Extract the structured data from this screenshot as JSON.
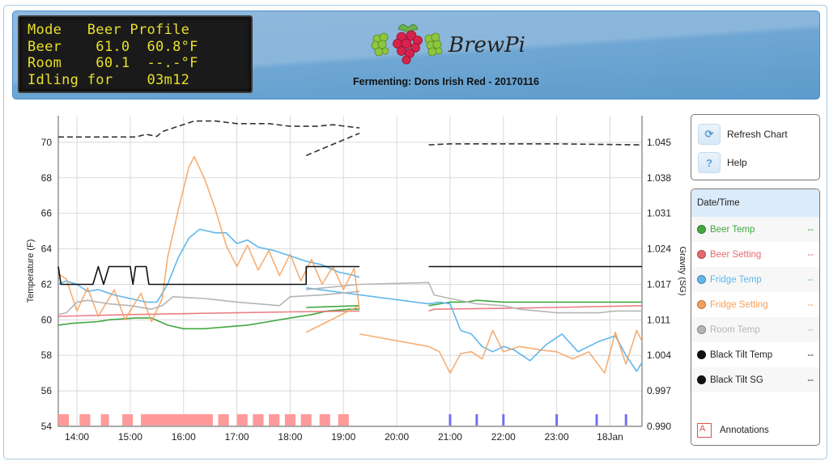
{
  "lcd": {
    "lines": [
      "Mode   Beer Profile",
      "Beer    61.0  60.8°F",
      "Room    60.1  --.-°F",
      "Idling for    03m12"
    ]
  },
  "header": {
    "logo_text": "BrewPi",
    "title": "Fermenting: Dons Irish Red - 20170116"
  },
  "controls": {
    "refresh_label": "Refresh Chart",
    "refresh_icon": "refresh-icon",
    "help_label": "Help",
    "help_icon_glyph": "?"
  },
  "legend": {
    "header": "Date/Time",
    "items": [
      {
        "label": "Beer Temp",
        "value": "--",
        "color": "#41a841"
      },
      {
        "label": "Beer Setting",
        "value": "--",
        "color": "#e8696d"
      },
      {
        "label": "Fridge Temp",
        "value": "--",
        "color": "#5fb7ec"
      },
      {
        "label": "Fridge Setting",
        "value": "--",
        "color": "#f5a05a"
      },
      {
        "label": "Room Temp",
        "value": "--",
        "color": "#b5b5b5"
      },
      {
        "label": "Black Tilt Temp",
        "value": "--",
        "color": "#111111"
      },
      {
        "label": "Black Tilt SG",
        "value": "--",
        "color": "#111111"
      },
      {
        "label": "",
        "value": "",
        "color": "#ffffff"
      }
    ],
    "annotations_label": "Annotations",
    "annotations_glyph": "A"
  },
  "chart_data": {
    "type": "line",
    "title": "",
    "xlabel": "",
    "ylabel": "Temperature (F)",
    "y2label": "Gravity (SG)",
    "ylim": [
      54,
      71.5
    ],
    "y2lim": [
      0.99,
      1.0485
    ],
    "yticks": [
      54,
      56,
      58,
      60,
      62,
      64,
      66,
      68,
      70
    ],
    "y2ticks": [
      "0.990",
      "0.997",
      "1.004",
      "1.011",
      "1.017",
      "1.024",
      "1.031",
      "1.038",
      "1.045"
    ],
    "xticks": [
      "14:00",
      "15:00",
      "16:00",
      "17:00",
      "18:00",
      "19:00",
      "20:00",
      "21:00",
      "22:00",
      "23:00",
      "18Jan"
    ],
    "x_range_hours": [
      13.65,
      24.6
    ],
    "grid": true,
    "legend_position": "right",
    "series": [
      {
        "name": "Beer Temp",
        "color": "#41a841",
        "points": [
          [
            13.65,
            59.7
          ],
          [
            13.9,
            59.8
          ],
          [
            14.4,
            59.9
          ],
          [
            14.6,
            60.0
          ],
          [
            15.1,
            60.1
          ],
          [
            15.4,
            60.1
          ],
          [
            15.7,
            59.7
          ],
          [
            16.0,
            59.5
          ],
          [
            16.4,
            59.5
          ],
          [
            16.8,
            59.6
          ],
          [
            17.2,
            59.7
          ],
          [
            17.6,
            59.9
          ],
          [
            18.0,
            60.1
          ],
          [
            18.4,
            60.3
          ],
          [
            18.7,
            60.5
          ],
          [
            19.1,
            60.6
          ],
          [
            19.3,
            60.6
          ],
          [
            null,
            null
          ],
          [
            18.3,
            60.7
          ],
          [
            19.3,
            60.8
          ],
          [
            null,
            null
          ],
          [
            20.6,
            60.8
          ],
          [
            21.0,
            61.0
          ],
          [
            21.3,
            61.0
          ],
          [
            21.5,
            61.1
          ],
          [
            22.0,
            61.0
          ],
          [
            24.6,
            61.0
          ]
        ]
      },
      {
        "name": "Beer Setting",
        "color": "#e8696d",
        "points": [
          [
            13.65,
            60.2
          ],
          [
            15.0,
            60.3
          ],
          [
            16.0,
            60.35
          ],
          [
            17.0,
            60.4
          ],
          [
            18.0,
            60.45
          ],
          [
            19.3,
            60.5
          ],
          [
            null,
            null
          ],
          [
            20.6,
            60.5
          ],
          [
            20.7,
            60.6
          ],
          [
            22.0,
            60.65
          ],
          [
            23.0,
            60.7
          ],
          [
            24.6,
            60.8
          ]
        ]
      },
      {
        "name": "Fridge Temp",
        "color": "#5fb7ec",
        "points": [
          [
            13.65,
            62.0
          ],
          [
            13.8,
            62.2
          ],
          [
            14.0,
            62.0
          ],
          [
            14.2,
            61.6
          ],
          [
            14.4,
            61.7
          ],
          [
            14.7,
            61.4
          ],
          [
            15.0,
            61.2
          ],
          [
            15.3,
            61.0
          ],
          [
            15.5,
            61.0
          ],
          [
            15.7,
            62.0
          ],
          [
            15.9,
            63.5
          ],
          [
            16.1,
            64.6
          ],
          [
            16.3,
            65.1
          ],
          [
            16.6,
            64.9
          ],
          [
            16.8,
            64.9
          ],
          [
            17.0,
            64.3
          ],
          [
            17.2,
            64.5
          ],
          [
            17.4,
            64.1
          ],
          [
            17.7,
            63.9
          ],
          [
            18.0,
            63.6
          ],
          [
            18.3,
            63.3
          ],
          [
            18.6,
            63.1
          ],
          [
            18.9,
            62.7
          ],
          [
            19.2,
            62.5
          ],
          [
            19.3,
            62.4
          ],
          [
            null,
            null
          ],
          [
            18.3,
            61.8
          ],
          [
            20.6,
            60.9
          ],
          [
            20.8,
            61.0
          ],
          [
            21.0,
            60.9
          ],
          [
            21.2,
            59.4
          ],
          [
            21.4,
            59.2
          ],
          [
            21.6,
            58.5
          ],
          [
            21.8,
            58.2
          ],
          [
            22.0,
            58.5
          ],
          [
            22.2,
            58.3
          ],
          [
            22.5,
            57.7
          ],
          [
            22.8,
            58.6
          ],
          [
            23.1,
            59.2
          ],
          [
            23.4,
            58.2
          ],
          [
            23.8,
            58.8
          ],
          [
            24.1,
            59.1
          ],
          [
            24.3,
            58.0
          ],
          [
            24.5,
            57.1
          ],
          [
            24.6,
            57.6
          ]
        ]
      },
      {
        "name": "Fridge Setting",
        "color": "#f5a05a",
        "points": [
          [
            13.65,
            62.6
          ],
          [
            13.8,
            62.3
          ],
          [
            14.0,
            60.5
          ],
          [
            14.2,
            61.8
          ],
          [
            14.4,
            60.2
          ],
          [
            14.7,
            61.7
          ],
          [
            14.9,
            60.0
          ],
          [
            15.2,
            61.5
          ],
          [
            15.4,
            59.9
          ],
          [
            15.6,
            61.2
          ],
          [
            15.7,
            63.5
          ],
          [
            15.9,
            66.2
          ],
          [
            16.1,
            68.6
          ],
          [
            16.2,
            69.2
          ],
          [
            16.4,
            67.9
          ],
          [
            16.6,
            66.2
          ],
          [
            16.8,
            64.2
          ],
          [
            17.0,
            63.0
          ],
          [
            17.2,
            64.2
          ],
          [
            17.4,
            62.8
          ],
          [
            17.6,
            63.9
          ],
          [
            17.8,
            62.5
          ],
          [
            18.0,
            63.7
          ],
          [
            18.2,
            62.2
          ],
          [
            18.4,
            63.4
          ],
          [
            18.6,
            62.0
          ],
          [
            18.8,
            63.0
          ],
          [
            19.0,
            61.7
          ],
          [
            19.2,
            62.9
          ],
          [
            19.3,
            60.6
          ],
          [
            null,
            null
          ],
          [
            18.3,
            59.3
          ],
          [
            19.3,
            60.8
          ],
          [
            null,
            null
          ],
          [
            19.3,
            59.2
          ],
          [
            20.6,
            58.5
          ],
          [
            20.8,
            58.2
          ],
          [
            21.0,
            57.0
          ],
          [
            21.2,
            58.1
          ],
          [
            21.4,
            58.2
          ],
          [
            21.6,
            57.8
          ],
          [
            21.8,
            59.4
          ],
          [
            22.0,
            58.2
          ],
          [
            22.3,
            58.5
          ],
          [
            22.7,
            58.3
          ],
          [
            23.0,
            58.2
          ],
          [
            23.3,
            57.8
          ],
          [
            23.6,
            58.2
          ],
          [
            23.9,
            57.0
          ],
          [
            24.1,
            59.3
          ],
          [
            24.3,
            57.5
          ],
          [
            24.5,
            59.4
          ],
          [
            24.6,
            58.8
          ]
        ]
      },
      {
        "name": "Room Temp",
        "color": "#b5b5b5",
        "points": [
          [
            13.65,
            60.3
          ],
          [
            13.8,
            60.4
          ],
          [
            14.0,
            61.0
          ],
          [
            14.2,
            61.1
          ],
          [
            14.6,
            60.9
          ],
          [
            15.0,
            60.8
          ],
          [
            15.4,
            60.6
          ],
          [
            15.6,
            60.8
          ],
          [
            15.8,
            61.3
          ],
          [
            16.4,
            61.2
          ],
          [
            17.0,
            61.0
          ],
          [
            17.4,
            60.9
          ],
          [
            17.8,
            60.8
          ],
          [
            18.0,
            61.3
          ],
          [
            18.6,
            61.4
          ],
          [
            19.3,
            61.6
          ],
          [
            null,
            null
          ],
          [
            18.3,
            61.7
          ],
          [
            19.3,
            62.0
          ],
          [
            20.6,
            62.1
          ],
          [
            20.7,
            61.4
          ],
          [
            21.0,
            61.2
          ],
          [
            21.5,
            60.9
          ],
          [
            22.0,
            60.8
          ],
          [
            22.3,
            60.6
          ],
          [
            23.0,
            60.4
          ],
          [
            23.8,
            60.4
          ],
          [
            24.1,
            60.5
          ],
          [
            24.6,
            60.5
          ]
        ]
      },
      {
        "name": "Black Tilt Temp",
        "color": "#111111",
        "points": [
          [
            13.65,
            63.0
          ],
          [
            13.7,
            62.0
          ],
          [
            14.3,
            62.0
          ],
          [
            14.4,
            63.0
          ],
          [
            14.5,
            62.0
          ],
          [
            14.6,
            63.0
          ],
          [
            15.0,
            63.0
          ],
          [
            15.05,
            62.0
          ],
          [
            15.1,
            63.0
          ],
          [
            15.3,
            63.0
          ],
          [
            15.35,
            62.0
          ],
          [
            18.3,
            62.0
          ],
          [
            18.3,
            63.0
          ],
          [
            19.3,
            63.0
          ],
          [
            null,
            null
          ],
          [
            20.6,
            63.0
          ],
          [
            24.6,
            63.0
          ]
        ]
      },
      {
        "name": "Black Tilt SG",
        "color": "#333333",
        "dashed": true,
        "axis": "y2",
        "points": [
          [
            13.65,
            1.0445
          ],
          [
            15.1,
            1.0445
          ],
          [
            15.3,
            1.045
          ],
          [
            15.5,
            1.0446
          ],
          [
            15.6,
            1.0455
          ],
          [
            15.9,
            1.0465
          ],
          [
            16.2,
            1.0475
          ],
          [
            16.6,
            1.0475
          ],
          [
            17.0,
            1.047
          ],
          [
            17.6,
            1.047
          ],
          [
            18.0,
            1.0465
          ],
          [
            18.5,
            1.0465
          ],
          [
            18.8,
            1.0468
          ],
          [
            19.3,
            1.0462
          ],
          [
            19.3,
            1.0462
          ],
          [
            null,
            null
          ],
          [
            18.3,
            1.041
          ],
          [
            19.3,
            1.0452
          ],
          [
            null,
            null
          ],
          [
            20.6,
            1.043
          ],
          [
            21.0,
            1.0432
          ],
          [
            22.0,
            1.0432
          ],
          [
            23.0,
            1.0432
          ],
          [
            24.6,
            1.043
          ]
        ]
      }
    ],
    "annotations": {
      "heating_bars_color": "#ff9a9a",
      "heating_ranges": [
        [
          13.65,
          13.85
        ],
        [
          14.05,
          14.25
        ],
        [
          14.45,
          14.6
        ],
        [
          14.85,
          15.05
        ],
        [
          15.2,
          16.55
        ],
        [
          16.65,
          16.85
        ],
        [
          17.0,
          17.2
        ],
        [
          17.3,
          17.5
        ],
        [
          17.6,
          17.8
        ],
        [
          17.9,
          18.1
        ],
        [
          18.2,
          18.4
        ],
        [
          18.55,
          18.75
        ],
        [
          18.9,
          19.1
        ]
      ],
      "cooling_marks_color": "#7070f0",
      "cooling_marks": [
        21.0,
        21.5,
        22.0,
        23.0,
        23.75,
        24.3
      ]
    }
  }
}
